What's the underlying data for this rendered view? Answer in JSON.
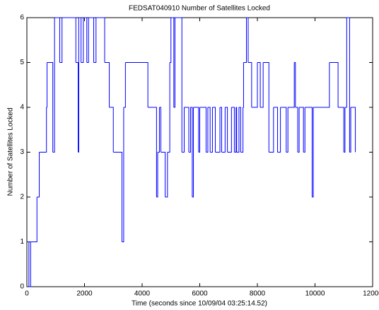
{
  "chart_data": {
    "type": "line",
    "drawstyle": "steps-post",
    "title": "FEDSAT040910 Number of Satellites Locked",
    "x_label": "Time (seconds since 10/09/04 03:25:14.52)",
    "y_label": "Number of Satellites Locked",
    "xlim": [
      0,
      12000
    ],
    "xticks": [
      0,
      2000,
      4000,
      6000,
      8000,
      10000,
      12000
    ],
    "ylim": [
      0,
      6
    ],
    "yticks": [
      0,
      1,
      2,
      3,
      4,
      5,
      6
    ],
    "grid": false,
    "series": [
      {
        "color": "#0000ff",
        "x": [
          0,
          70,
          130,
          350,
          430,
          680,
          700,
          900,
          960,
          1140,
          1220,
          1700,
          1780,
          1800,
          1880,
          1960,
          2080,
          2140,
          2320,
          2400,
          2700,
          2860,
          3000,
          3300,
          3360,
          3420,
          4200,
          4500,
          4540,
          4600,
          4650,
          4800,
          4880,
          4960,
          5000,
          5100,
          5140,
          5380,
          5460,
          5620,
          5680,
          5740,
          5780,
          5960,
          6000,
          6220,
          6280,
          6360,
          6440,
          6540,
          6700,
          6760,
          6880,
          6960,
          7100,
          7200,
          7260,
          7280,
          7360,
          7420,
          7500,
          7520,
          7620,
          7680,
          7800,
          8000,
          8100,
          8200,
          8400,
          8560,
          8700,
          8800,
          9000,
          9060,
          9280,
          9320,
          9400,
          9450,
          9600,
          9650,
          9900,
          9940,
          10500,
          10800,
          11000,
          11040,
          11100,
          11200,
          11240,
          11400
        ],
        "values": [
          1,
          0,
          1,
          2,
          3,
          4,
          5,
          3,
          6,
          5,
          6,
          5,
          3,
          6,
          5,
          6,
          5,
          6,
          5,
          6,
          5,
          4,
          3,
          1,
          4,
          5,
          4,
          2,
          3,
          4,
          3,
          2,
          3,
          5,
          6,
          4,
          6,
          3,
          4,
          3,
          4,
          2,
          4,
          3,
          4,
          3,
          4,
          3,
          4,
          3,
          4,
          3,
          4,
          3,
          4,
          3,
          4,
          3,
          4,
          3,
          4,
          5,
          6,
          5,
          4,
          5,
          4,
          5,
          3,
          4,
          3,
          4,
          3,
          4,
          5,
          4,
          3,
          4,
          3,
          4,
          2,
          4,
          5,
          4,
          3,
          4,
          6,
          3,
          4,
          3
        ]
      }
    ]
  }
}
